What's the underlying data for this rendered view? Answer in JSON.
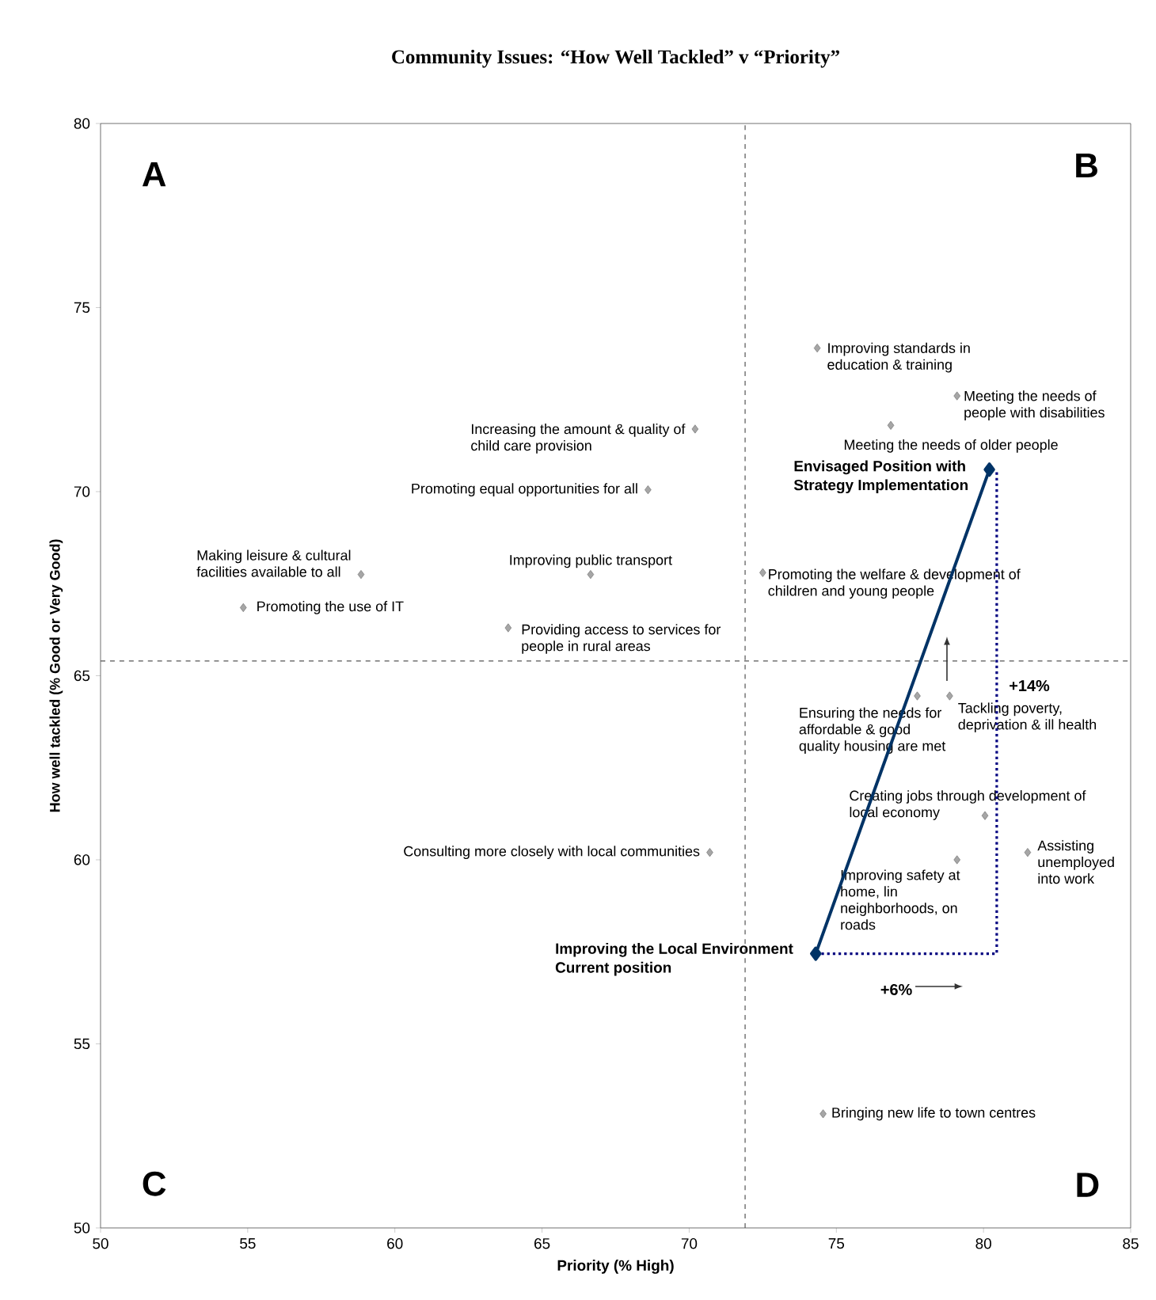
{
  "chart_data": {
    "type": "scatter",
    "title": "Community Issues: “How Well Tackled” v “Priority”",
    "xlabel": "Priority (% High)",
    "ylabel": "How well tackled (% Good or Very Good)",
    "xlim": [
      50,
      85
    ],
    "ylim": [
      50,
      80
    ],
    "xticks": [
      50,
      55,
      60,
      65,
      70,
      75,
      80,
      85
    ],
    "yticks": [
      50,
      55,
      60,
      65,
      70,
      75,
      80
    ],
    "grid": false,
    "series": [
      {
        "type": "scatter",
        "color": "#a6a6a6",
        "marker": "diamond",
        "x": [
          74.35,
          79.1,
          76.85,
          70.2,
          68.6,
          58.85,
          66.65,
          54.85,
          63.85,
          72.5,
          77.75,
          78.85,
          80.05,
          79.1,
          81.5,
          70.7,
          74.55
        ],
        "values": [
          73.9,
          72.6,
          71.8,
          71.7,
          70.05,
          67.75,
          67.75,
          66.85,
          66.3,
          67.8,
          64.45,
          64.45,
          61.2,
          60.0,
          60.2,
          60.2,
          53.1
        ],
        "value_labels": [
          "Improving standards in education & training",
          "Meeting the needs of people with disabilities",
          "Meeting the needs of older people",
          "Increasing the amount & quality of child care provision",
          "Promoting equal opportunities for all",
          "Making leisure & cultural facilities available to all",
          "Improving public transport",
          "Promoting the use of IT",
          "Providing access to services for people in rural areas",
          "Promoting the welfare & development of children and young people",
          "Ensuring the needs for affordable & good quality housing are met",
          "Tackling poverty, deprivation & ill health",
          "Creating jobs through development of local economy",
          "Improving safety at home, lin neighborhoods, on roads",
          "Assisting unemployed into work",
          "Consulting more closely with local communities",
          "Bringing new life to town centres"
        ]
      },
      {
        "type": "line",
        "color": "#003366",
        "marker": "diamond",
        "line_style": "solid",
        "x": [
          74.3,
          80.2
        ],
        "values": [
          57.45,
          70.6
        ],
        "value_labels": [
          "Improving the Local Environment Current position",
          "Envisaged Position with Strategy Implementation"
        ]
      },
      {
        "type": "line",
        "color": "#000080",
        "marker": "none",
        "line_style": "dotted",
        "x": [
          74.3,
          80.45,
          80.45
        ],
        "values": [
          57.45,
          57.45,
          70.6
        ]
      }
    ],
    "ref_lines": [
      {
        "axis": "x",
        "value": 71.9,
        "color": "#555555",
        "line_style": "dashed"
      },
      {
        "axis": "y",
        "value": 65.4,
        "color": "#555555",
        "line_style": "dashed"
      }
    ],
    "annotations": [
      "A",
      "B",
      "C",
      "D",
      "+14%",
      "+6%"
    ]
  }
}
